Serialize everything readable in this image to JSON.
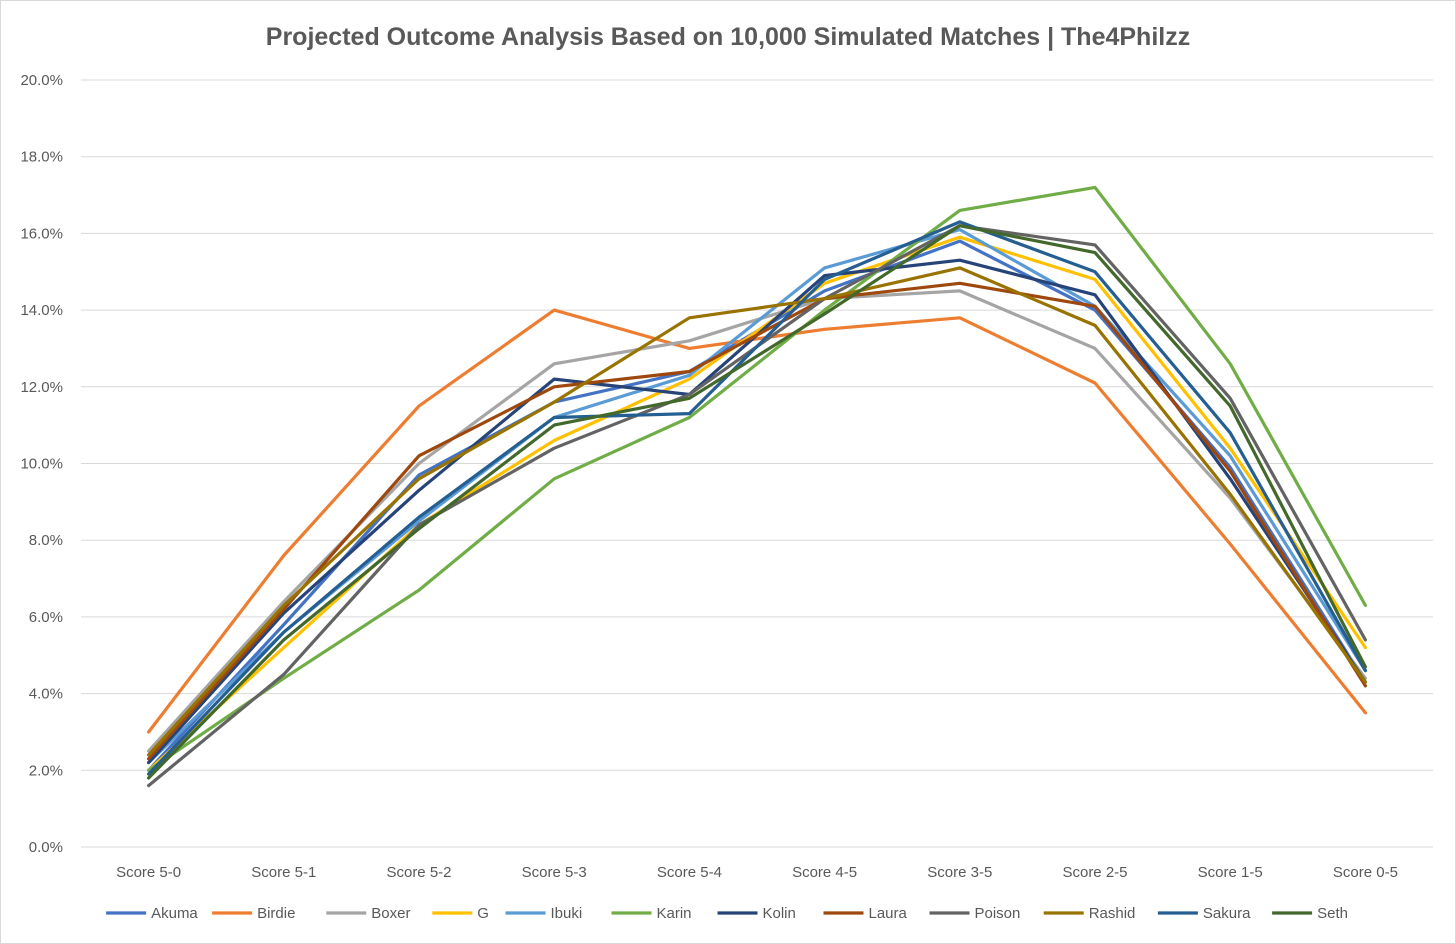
{
  "chart_data": {
    "type": "line",
    "title": "Projected Outcome Analysis Based on 10,000 Simulated Matches | The4Philzz",
    "xlabel": "",
    "ylabel": "",
    "ylim": [
      0,
      20
    ],
    "y_ticks": [
      "0.0%",
      "2.0%",
      "4.0%",
      "6.0%",
      "8.0%",
      "10.0%",
      "12.0%",
      "14.0%",
      "16.0%",
      "18.0%",
      "20.0%"
    ],
    "grid": "horizontal",
    "legend_position": "bottom",
    "categories": [
      "Score 5-0",
      "Score 5-1",
      "Score 5-2",
      "Score 5-3",
      "Score 5-4",
      "Score 4-5",
      "Score 3-5",
      "Score 2-5",
      "Score 1-5",
      "Score 0-5"
    ],
    "series": [
      {
        "name": "Akuma",
        "color": "#4472C4",
        "values": [
          2.0,
          5.8,
          9.7,
          11.6,
          12.4,
          14.5,
          15.8,
          14.0,
          9.9,
          4.3
        ]
      },
      {
        "name": "Birdie",
        "color": "#ED7D31",
        "values": [
          3.0,
          7.6,
          11.5,
          14.0,
          13.0,
          13.5,
          13.8,
          12.1,
          7.9,
          3.5
        ]
      },
      {
        "name": "Boxer",
        "color": "#A5A5A5",
        "values": [
          2.5,
          6.4,
          10.0,
          12.6,
          13.2,
          14.3,
          14.5,
          13.0,
          9.1,
          4.4
        ]
      },
      {
        "name": "G",
        "color": "#FFC000",
        "values": [
          2.0,
          5.2,
          8.4,
          10.6,
          12.2,
          14.7,
          15.9,
          14.8,
          10.4,
          5.2
        ]
      },
      {
        "name": "Ibuki",
        "color": "#5B9BD5",
        "values": [
          2.2,
          5.6,
          8.5,
          11.2,
          12.3,
          15.1,
          16.1,
          14.1,
          10.2,
          4.6
        ]
      },
      {
        "name": "Karin",
        "color": "#70AD47",
        "values": [
          2.0,
          4.4,
          6.7,
          9.6,
          11.2,
          14.0,
          16.6,
          17.2,
          12.6,
          6.3
        ]
      },
      {
        "name": "Kolin",
        "color": "#264478",
        "values": [
          2.2,
          6.1,
          9.3,
          12.2,
          11.8,
          14.9,
          15.3,
          14.4,
          9.6,
          4.3
        ]
      },
      {
        "name": "Laura",
        "color": "#9E480E",
        "values": [
          2.3,
          6.2,
          10.2,
          12.0,
          12.4,
          14.3,
          14.7,
          14.1,
          9.8,
          4.2
        ]
      },
      {
        "name": "Poison",
        "color": "#636363",
        "values": [
          1.6,
          4.5,
          8.4,
          10.4,
          11.8,
          14.3,
          16.2,
          15.7,
          11.7,
          5.4
        ]
      },
      {
        "name": "Rashid",
        "color": "#997300",
        "values": [
          2.4,
          6.3,
          9.6,
          11.6,
          13.8,
          14.3,
          15.1,
          13.6,
          9.2,
          4.3
        ]
      },
      {
        "name": "Sakura",
        "color": "#255E91",
        "values": [
          1.9,
          5.6,
          8.6,
          11.2,
          11.3,
          14.8,
          16.3,
          15.0,
          10.8,
          4.6
        ]
      },
      {
        "name": "Seth",
        "color": "#43682B",
        "values": [
          1.8,
          5.4,
          8.3,
          11.0,
          11.7,
          13.9,
          16.2,
          15.5,
          11.5,
          4.7
        ]
      }
    ]
  }
}
